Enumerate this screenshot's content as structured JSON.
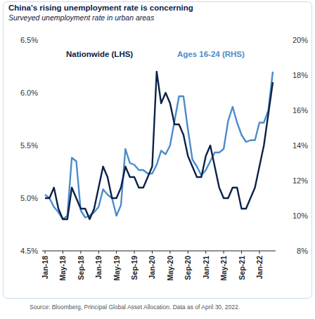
{
  "chart_data": {
    "type": "line",
    "title": "China's rising unemployment rate is concerning",
    "subtitle": "Surveyed unemployment rate in urban areas",
    "source": "Source: Bloomberg, Principal Global Asset Allocation. Data as of April 30, 2022.",
    "categories": [
      "Jan-18",
      null,
      null,
      null,
      "May-18",
      null,
      null,
      null,
      "Sep-18",
      null,
      null,
      null,
      "Jan-19",
      null,
      null,
      null,
      "May-19",
      null,
      null,
      null,
      "Sep-19",
      null,
      null,
      null,
      "Jan-20",
      null,
      null,
      null,
      "May-20",
      null,
      null,
      null,
      "Sep-20",
      null,
      null,
      null,
      "Jan-21",
      null,
      null,
      null,
      "May-21",
      null,
      null,
      null,
      "Sep-21",
      null,
      null,
      null,
      "Jan-22",
      null,
      null,
      null
    ],
    "series": [
      {
        "name": "Nationwide (LHS)",
        "color": "#0b2248",
        "axis": "y",
        "values": [
          5.0,
          5.0,
          5.1,
          4.9,
          4.8,
          4.8,
          5.1,
          5.0,
          4.9,
          4.9,
          4.8,
          4.9,
          5.1,
          5.3,
          5.2,
          5.0,
          5.0,
          5.1,
          5.3,
          5.2,
          5.2,
          5.1,
          5.1,
          5.2,
          5.3,
          6.2,
          5.9,
          6.0,
          5.9,
          5.7,
          5.7,
          5.6,
          5.4,
          5.3,
          5.2,
          5.2,
          5.4,
          5.5,
          5.3,
          5.1,
          5.0,
          5.0,
          5.1,
          5.1,
          4.9,
          4.9,
          5.0,
          5.1,
          5.3,
          5.5,
          5.8,
          6.1
        ]
      },
      {
        "name": "Ages 16-24 (RHS)",
        "color": "#4a8ccb",
        "axis": "y2",
        "values": [
          11.2,
          11.0,
          10.5,
          10.2,
          9.8,
          10.0,
          13.3,
          13.1,
          10.3,
          9.9,
          10.0,
          10.2,
          10.5,
          11.5,
          11.2,
          11.0,
          10.0,
          10.6,
          13.8,
          13.0,
          12.9,
          12.6,
          12.6,
          12.4,
          12.4,
          12.9,
          13.7,
          13.5,
          14.0,
          15.4,
          16.8,
          16.8,
          14.9,
          13.2,
          12.8,
          12.3,
          12.6,
          13.1,
          13.6,
          13.6,
          13.8,
          15.4,
          16.2,
          15.3,
          14.6,
          14.2,
          14.3,
          14.3,
          15.3,
          15.3,
          16.0,
          18.2
        ]
      }
    ],
    "ylim": [
      4.5,
      6.5
    ],
    "yticks": [
      {
        "value": 4.5,
        "label": "4.5%"
      },
      {
        "value": 5.0,
        "label": "5.0%"
      },
      {
        "value": 5.5,
        "label": "5.5%"
      },
      {
        "value": 6.0,
        "label": "6.0%"
      },
      {
        "value": 6.5,
        "label": "6.5%"
      }
    ],
    "y2lim": [
      8,
      20
    ],
    "y2ticks": [
      {
        "value": 8,
        "label": "8%"
      },
      {
        "value": 10,
        "label": "10%"
      },
      {
        "value": 12,
        "label": "12%"
      },
      {
        "value": 14,
        "label": "14%"
      },
      {
        "value": 16,
        "label": "16%"
      },
      {
        "value": 18,
        "label": "18%"
      },
      {
        "value": 20,
        "label": "20%"
      }
    ],
    "grid": false,
    "legend": "top"
  }
}
